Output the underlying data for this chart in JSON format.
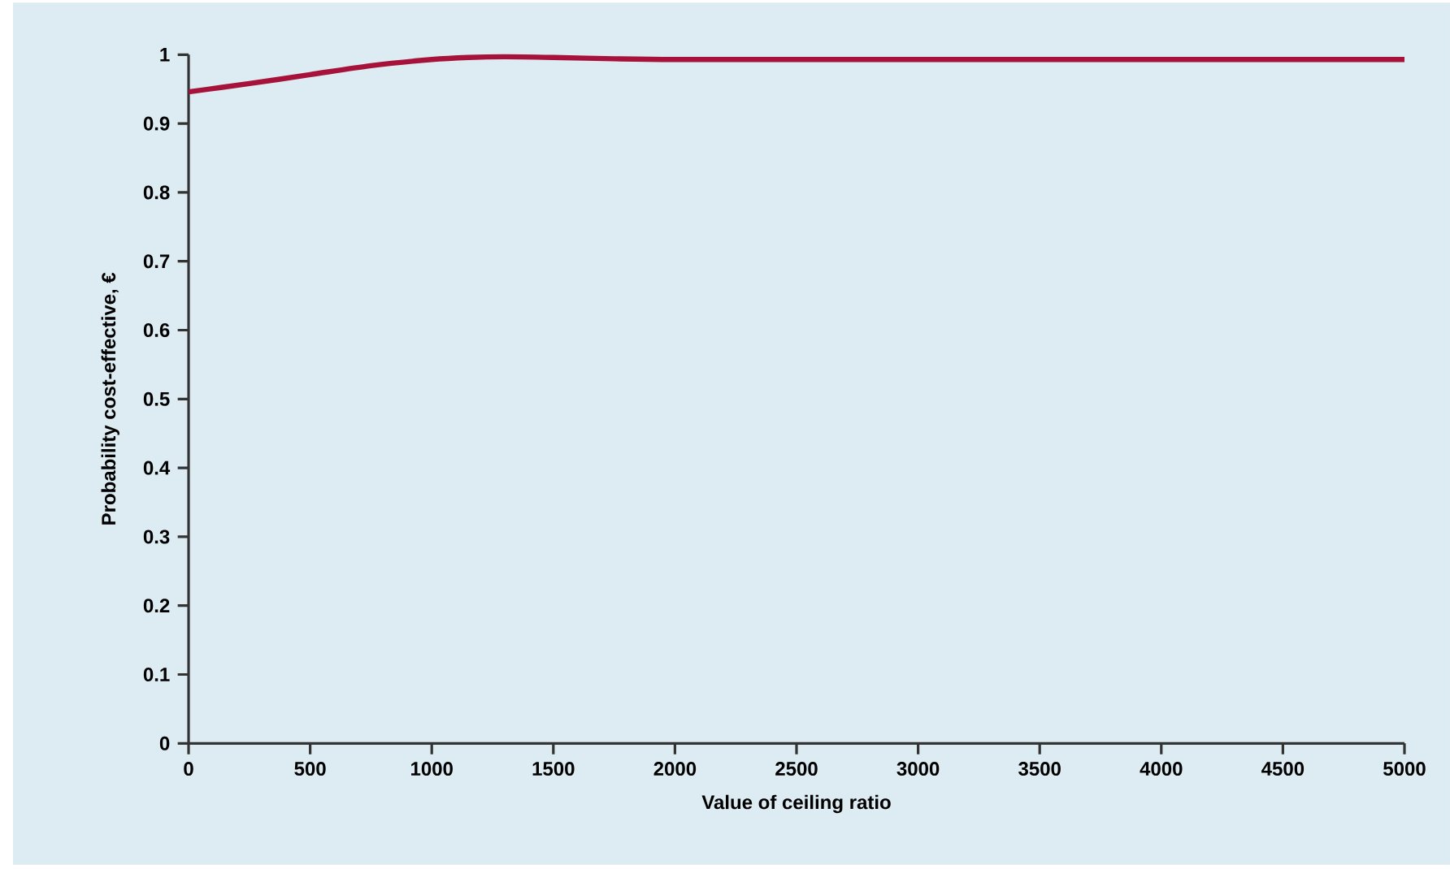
{
  "chart_data": {
    "type": "line",
    "xlabel": "Value of ceiling ratio",
    "ylabel": "Probability cost-effective, €",
    "x": [
      0,
      250,
      500,
      750,
      1000,
      1150,
      1300,
      1500,
      1750,
      2000,
      2500,
      3000,
      3500,
      4000,
      4500,
      5000
    ],
    "series": [
      {
        "color": "#a6123a",
        "values": [
          0.946,
          0.958,
          0.971,
          0.984,
          0.993,
          0.996,
          0.997,
          0.996,
          0.994,
          0.993,
          0.993,
          0.993,
          0.993,
          0.993,
          0.993,
          0.993
        ]
      }
    ],
    "xlim": [
      0,
      5000
    ],
    "ylim": [
      0,
      1
    ],
    "xticks": [
      0,
      500,
      1000,
      1500,
      2000,
      2500,
      3000,
      3500,
      4000,
      4500,
      5000
    ],
    "yticks": [
      0,
      0.1,
      0.2,
      0.3,
      0.4,
      0.5,
      0.6,
      0.7,
      0.8,
      0.9,
      1
    ],
    "marker": "none",
    "line_style": "solid"
  }
}
